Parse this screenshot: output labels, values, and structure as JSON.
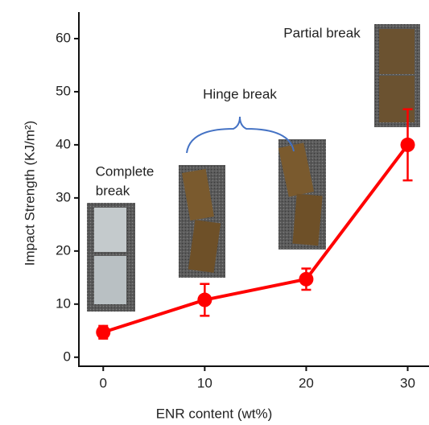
{
  "chart_data": {
    "type": "line",
    "x_label": "ENR content (wt%)",
    "y_label": "Impact Strength (KJ/m²)",
    "x": [
      0,
      10,
      20,
      30
    ],
    "series": [
      {
        "color": "#ff0000",
        "values": [
          4.7,
          10.8,
          14.7,
          40
        ],
        "errors": [
          1.2,
          3,
          2,
          6.7
        ]
      }
    ],
    "xlim": [
      -2.4,
      32.1
    ],
    "xticks": [
      0,
      10,
      20,
      30
    ],
    "ylim": [
      -1.7,
      65
    ],
    "yticks": [
      0,
      10,
      20,
      30,
      40,
      50,
      60
    ],
    "annotations": [
      {
        "lines": [
          "Complete",
          "break"
        ]
      },
      {
        "lines": [
          "Hinge break"
        ]
      },
      {
        "lines": [
          "Partial break"
        ]
      }
    ]
  }
}
